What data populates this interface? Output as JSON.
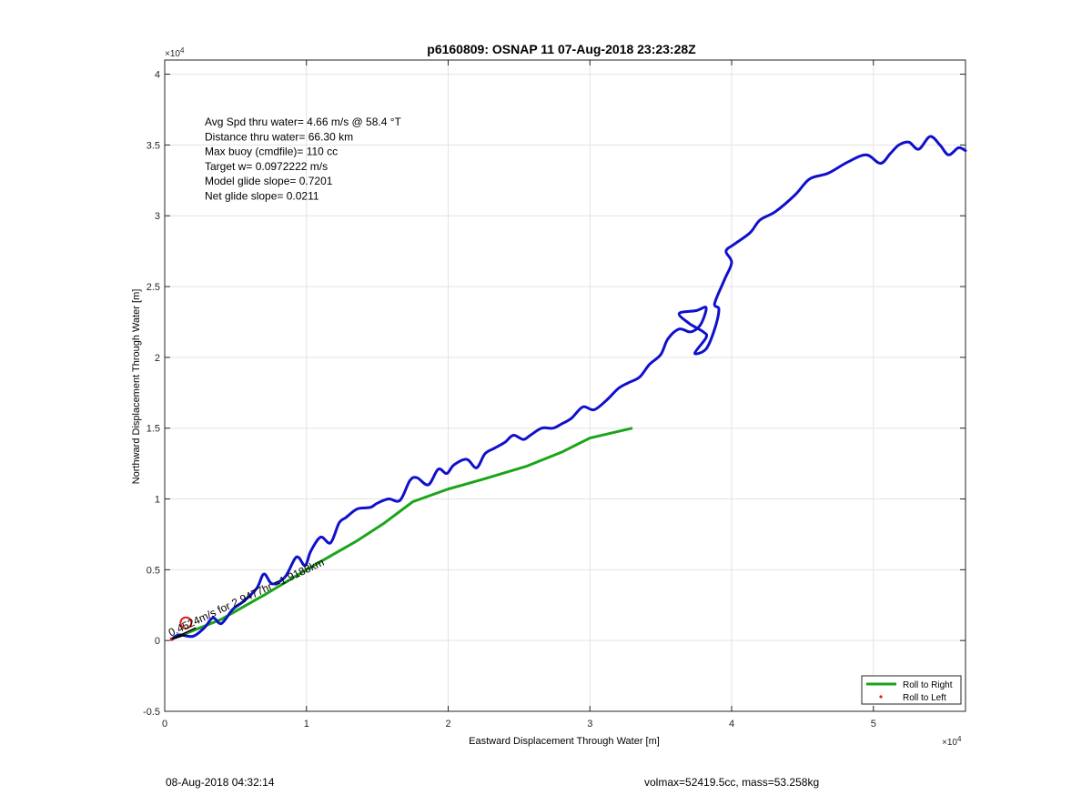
{
  "chart_data": {
    "type": "line",
    "title": "p6160809: OSNAP 11 07-Aug-2018 23:23:28Z",
    "xlabel": "Eastward Displacement Through Water [m]",
    "ylabel": "Northward Displacement Through Water [m]",
    "xlim": [
      0,
      56500
    ],
    "ylim": [
      -5000,
      41000
    ],
    "x_ticks": [
      0,
      10000,
      20000,
      30000,
      40000,
      50000
    ],
    "x_tick_labels": [
      "0",
      "1",
      "2",
      "3",
      "4",
      "5"
    ],
    "y_ticks": [
      -5000,
      0,
      5000,
      10000,
      15000,
      20000,
      25000,
      30000,
      35000,
      40000
    ],
    "y_tick_labels": [
      "-0.5",
      "0",
      "0.5",
      "1",
      "1.5",
      "2",
      "2.5",
      "3",
      "3.5",
      "4"
    ],
    "x_exponent_label": "×10",
    "x_exponent_power": "4",
    "y_exponent_label": "×10",
    "y_exponent_power": "4",
    "grid": true,
    "legend_position": "bottom-right",
    "legend": [
      {
        "label": "Roll to Right",
        "color": "#1aa51a",
        "marker": "line"
      },
      {
        "label": "Roll to Left",
        "color": "#e41a1c",
        "marker": "dot"
      }
    ],
    "annotations": [
      "Avg Spd thru water=  4.66 m/s @  58.4 °T",
      "Distance thru water= 66.30 km",
      "Max buoy (cmdfile)= 110 cc",
      "Target w= 0.0972222 m/s",
      "Model glide slope= 0.7201",
      "Net glide slope= 0.0211"
    ],
    "track_label": "0.4524m/s for 2.9477hr =1.9188km",
    "series": [
      {
        "name": "Roll to Right",
        "color": "#1aa51a",
        "x": [
          500,
          4000,
          7000,
          10000,
          13500,
          15500,
          17500,
          20000,
          22500,
          25500,
          28000,
          30000,
          33000
        ],
        "y": [
          100,
          1500,
          3200,
          5000,
          7000,
          8300,
          9800,
          10700,
          11400,
          12300,
          13300,
          14300,
          15000
        ]
      },
      {
        "name": "",
        "color": "#1010cc",
        "x": [
          500,
          1000,
          2000,
          2800,
          3400,
          4000,
          4800,
          5600,
          6500,
          7000,
          7600,
          8500,
          9300,
          9900,
          10300,
          11000,
          11700,
          12300,
          12800,
          13600,
          14500,
          15000,
          15800,
          16600,
          17300,
          17800,
          18600,
          19300,
          19900,
          20400,
          21300,
          22000,
          22600,
          23300,
          24000,
          24600,
          25300,
          25800,
          26600,
          27400,
          28000,
          28700,
          29500,
          30300,
          31200,
          32000,
          32700,
          33500,
          34200,
          35000,
          35500,
          36300,
          37100,
          37800,
          38200,
          37500,
          36300,
          37000,
          38000,
          38200,
          37400,
          38200,
          38800,
          39100,
          38800,
          39500,
          40000,
          39600,
          40200,
          41300,
          42000,
          43100,
          44500,
          45500,
          46800,
          48200,
          49500,
          50500,
          51200,
          51800,
          52500,
          53200,
          54000,
          54700,
          55300,
          56000,
          56500
        ],
        "y": [
          100,
          400,
          300,
          900,
          1600,
          1200,
          2200,
          2800,
          3700,
          4700,
          4000,
          4500,
          5900,
          5300,
          6300,
          7300,
          6900,
          8300,
          8700,
          9300,
          9400,
          9700,
          10000,
          9900,
          11300,
          11500,
          11000,
          12100,
          11800,
          12400,
          12800,
          12200,
          13200,
          13600,
          14000,
          14500,
          14200,
          14500,
          15000,
          15000,
          15300,
          15700,
          16500,
          16300,
          17000,
          17800,
          18200,
          18600,
          19500,
          20200,
          21300,
          22000,
          21800,
          22300,
          23500,
          23300,
          23100,
          22400,
          21800,
          21400,
          20300,
          20600,
          22000,
          23400,
          23800,
          25500,
          26700,
          27500,
          28000,
          28800,
          29700,
          30300,
          31500,
          32600,
          33000,
          33800,
          34300,
          33700,
          34400,
          35000,
          35200,
          34700,
          35600,
          35000,
          34300,
          34800,
          34600
        ]
      }
    ]
  },
  "footer": {
    "timestamp": "08-Aug-2018 04:32:14",
    "summary": "volmax=52419.5cc, mass=53.258kg"
  }
}
